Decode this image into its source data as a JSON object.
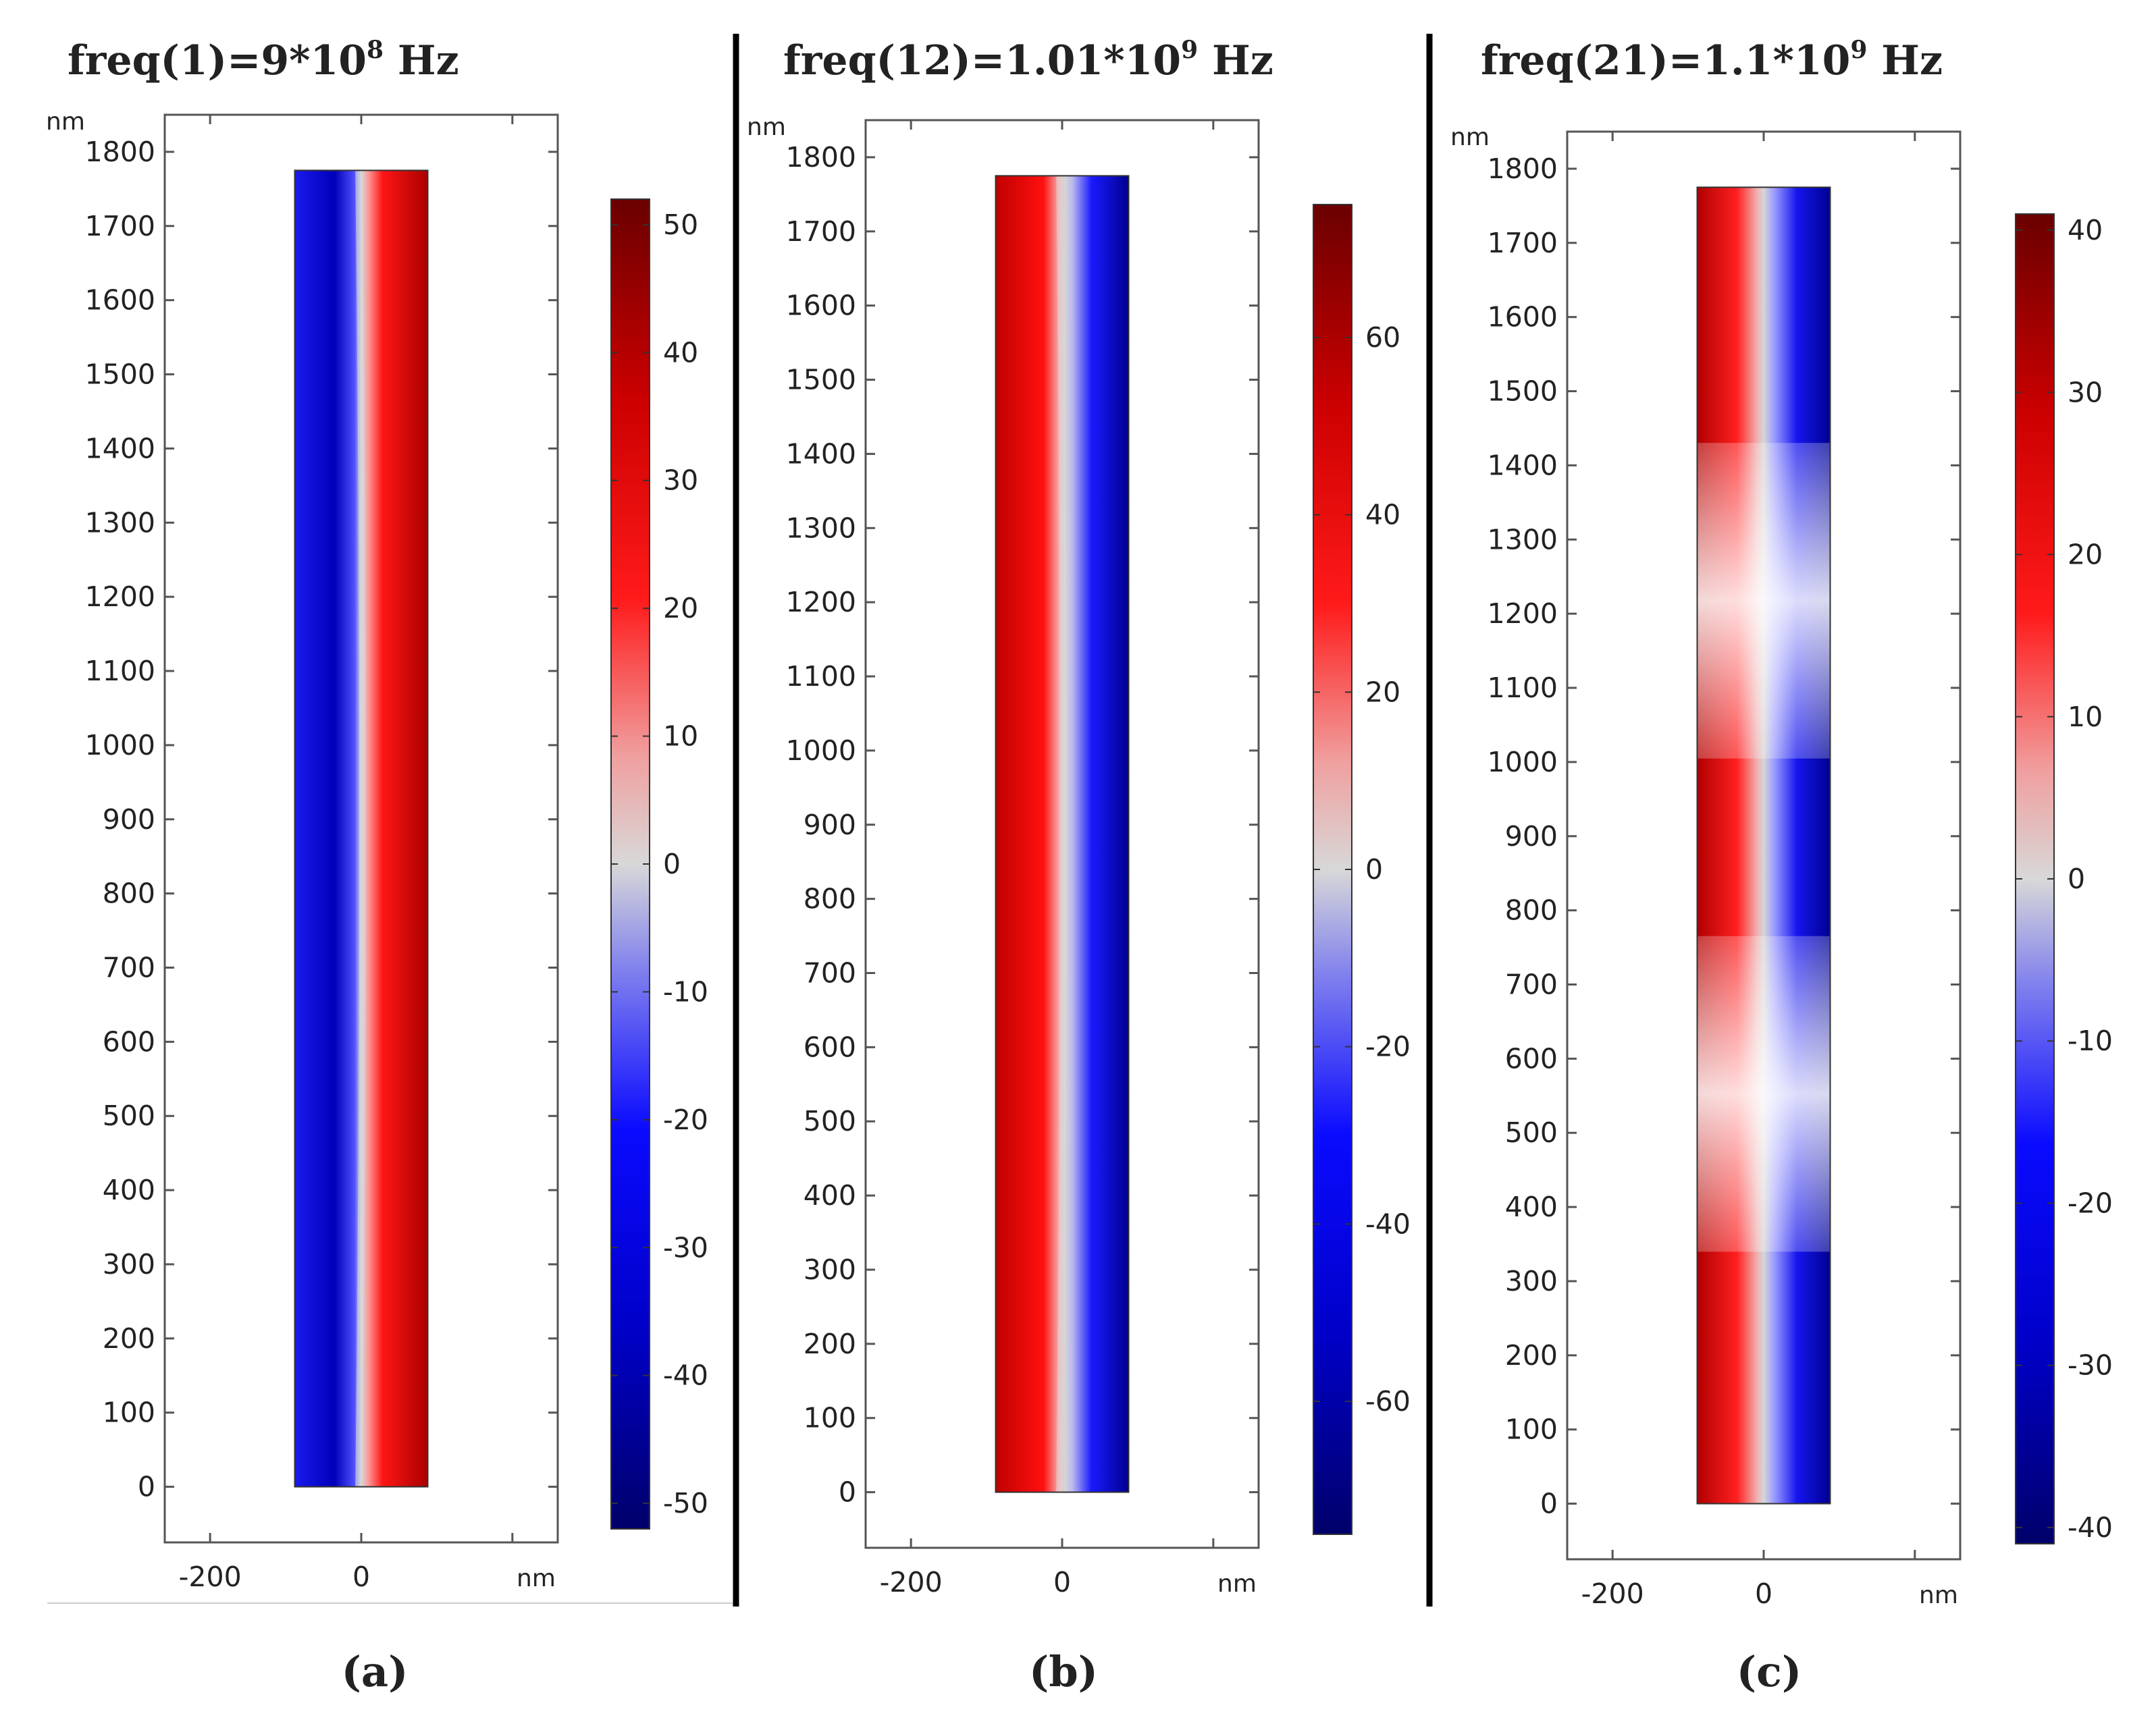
{
  "chart_data": [
    {
      "type": "heatmap",
      "panel": "(a)",
      "title": {
        "base": "freq(1)=9*10",
        "exp": "8",
        "suffix": " Hz"
      },
      "x_unit": "nm",
      "y_unit": "nm",
      "xlim": [
        -260,
        260
      ],
      "ylim": [
        -75,
        1850
      ],
      "x_ticks": [
        -200,
        0
      ],
      "y_ticks": [
        0,
        100,
        200,
        300,
        400,
        500,
        600,
        700,
        800,
        900,
        1000,
        1100,
        1200,
        1300,
        1400,
        1500,
        1600,
        1700,
        1800
      ],
      "domain": {
        "x": [
          -88,
          88
        ],
        "y": [
          0,
          1775
        ]
      },
      "field": {
        "pattern": "uniform",
        "left_sign": -1,
        "peak": 52
      },
      "colorbar": {
        "range": [
          -52,
          52
        ],
        "ticks": [
          -50,
          -40,
          -30,
          -20,
          -10,
          0,
          10,
          20,
          30,
          40,
          50
        ]
      }
    },
    {
      "type": "heatmap",
      "panel": "(b)",
      "title": {
        "base": "freq(12)=1.01*10",
        "exp": "9",
        "suffix": " Hz"
      },
      "x_unit": "nm",
      "y_unit": "nm",
      "xlim": [
        -260,
        260
      ],
      "ylim": [
        -75,
        1850
      ],
      "x_ticks": [
        -200,
        0
      ],
      "y_ticks": [
        0,
        100,
        200,
        300,
        400,
        500,
        600,
        700,
        800,
        900,
        1000,
        1100,
        1200,
        1300,
        1400,
        1500,
        1600,
        1700,
        1800
      ],
      "domain": {
        "x": [
          -88,
          88
        ],
        "y": [
          0,
          1775
        ]
      },
      "field": {
        "pattern": "uniform",
        "left_sign": 1,
        "peak": 75
      },
      "colorbar": {
        "range": [
          -75,
          75
        ],
        "ticks": [
          -60,
          -40,
          -20,
          0,
          20,
          40,
          60
        ]
      }
    },
    {
      "type": "heatmap",
      "panel": "(c)",
      "title": {
        "base": "freq(21)=1.1*10",
        "exp": "9",
        "suffix": " Hz"
      },
      "x_unit": "nm",
      "y_unit": "nm",
      "xlim": [
        -260,
        260
      ],
      "ylim": [
        -75,
        1850
      ],
      "x_ticks": [
        -200,
        0
      ],
      "y_ticks": [
        0,
        100,
        200,
        300,
        400,
        500,
        600,
        700,
        800,
        900,
        1000,
        1100,
        1200,
        1300,
        1400,
        1500,
        1600,
        1700,
        1800
      ],
      "domain": {
        "x": [
          -88,
          88
        ],
        "y": [
          0,
          1775
        ]
      },
      "field": {
        "pattern": "periodic",
        "left_sign": 1,
        "peak": 41,
        "period": 665,
        "phase_y": 220
      },
      "colorbar": {
        "range": [
          -41,
          41
        ],
        "ticks": [
          -40,
          -30,
          -20,
          -10,
          0,
          10,
          20,
          30,
          40
        ]
      }
    }
  ]
}
